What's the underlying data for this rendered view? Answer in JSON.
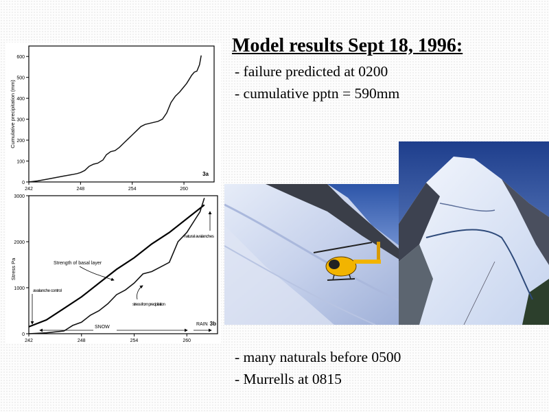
{
  "slide": {
    "title": "Model results Sept 18, 1996:",
    "bullets_top": [
      "- failure predicted at 0200",
      "- cumulative pptn = 590mm"
    ],
    "bullets_bottom": [
      "- many naturals before 0500",
      "- Murrells at 0815"
    ]
  },
  "chart_data": [
    {
      "type": "line",
      "panel_label": "3a",
      "ylabel": "Cumulative precipitation (mm)",
      "xlabel": "",
      "xlim": [
        242,
        263.5
      ],
      "ylim": [
        0,
        650
      ],
      "xticks": [
        242,
        248,
        254,
        260
      ],
      "yticks": [
        0,
        100,
        200,
        300,
        400,
        500,
        600
      ],
      "series": [
        {
          "x": [
            242,
            243,
            244,
            245,
            246,
            247,
            247.6,
            248,
            248.5,
            249,
            249.5,
            250,
            250.6,
            251,
            251.5,
            252,
            252.5,
            253,
            253.5,
            254,
            254.5,
            255,
            255.5,
            256,
            256.5,
            257,
            257.5,
            258,
            258.5,
            259,
            259.5,
            260,
            260.3,
            260.6,
            260.9,
            261.2,
            261.5,
            261.8,
            262
          ],
          "y": [
            0,
            5,
            12,
            20,
            28,
            35,
            40,
            45,
            55,
            75,
            85,
            90,
            105,
            130,
            145,
            150,
            165,
            185,
            205,
            225,
            245,
            265,
            275,
            280,
            285,
            290,
            300,
            330,
            380,
            410,
            430,
            455,
            470,
            490,
            510,
            525,
            530,
            560,
            605
          ]
        }
      ]
    },
    {
      "type": "line",
      "panel_label": "3b",
      "ylabel": "Stress Pa",
      "xlabel": "",
      "xlim": [
        242,
        263.5
      ],
      "ylim": [
        0,
        3000
      ],
      "xticks": [
        242,
        248,
        254,
        260
      ],
      "yticks": [
        0,
        1000,
        2000,
        3000
      ],
      "series": [
        {
          "name": "Strength of basal layer",
          "x": [
            242,
            244,
            246,
            248,
            250,
            252,
            254,
            256,
            258,
            260,
            262
          ],
          "y": [
            150,
            300,
            550,
            800,
            1100,
            1400,
            1650,
            1950,
            2200,
            2500,
            2800
          ]
        },
        {
          "name": "stress from precipitation",
          "x": [
            242,
            244,
            246,
            247,
            248,
            249,
            250,
            251,
            252,
            253,
            254,
            255,
            256,
            257,
            258,
            259,
            260,
            261,
            261.5,
            262
          ],
          "y": [
            0,
            20,
            60,
            180,
            250,
            400,
            500,
            650,
            850,
            950,
            1100,
            1300,
            1350,
            1450,
            1550,
            2000,
            2200,
            2500,
            2650,
            2950
          ]
        }
      ],
      "annotations": [
        "Strength of basal layer",
        "stress from precipitation",
        "avalanche control",
        "natural avalanches",
        "SNOW",
        "RAIN"
      ]
    }
  ]
}
